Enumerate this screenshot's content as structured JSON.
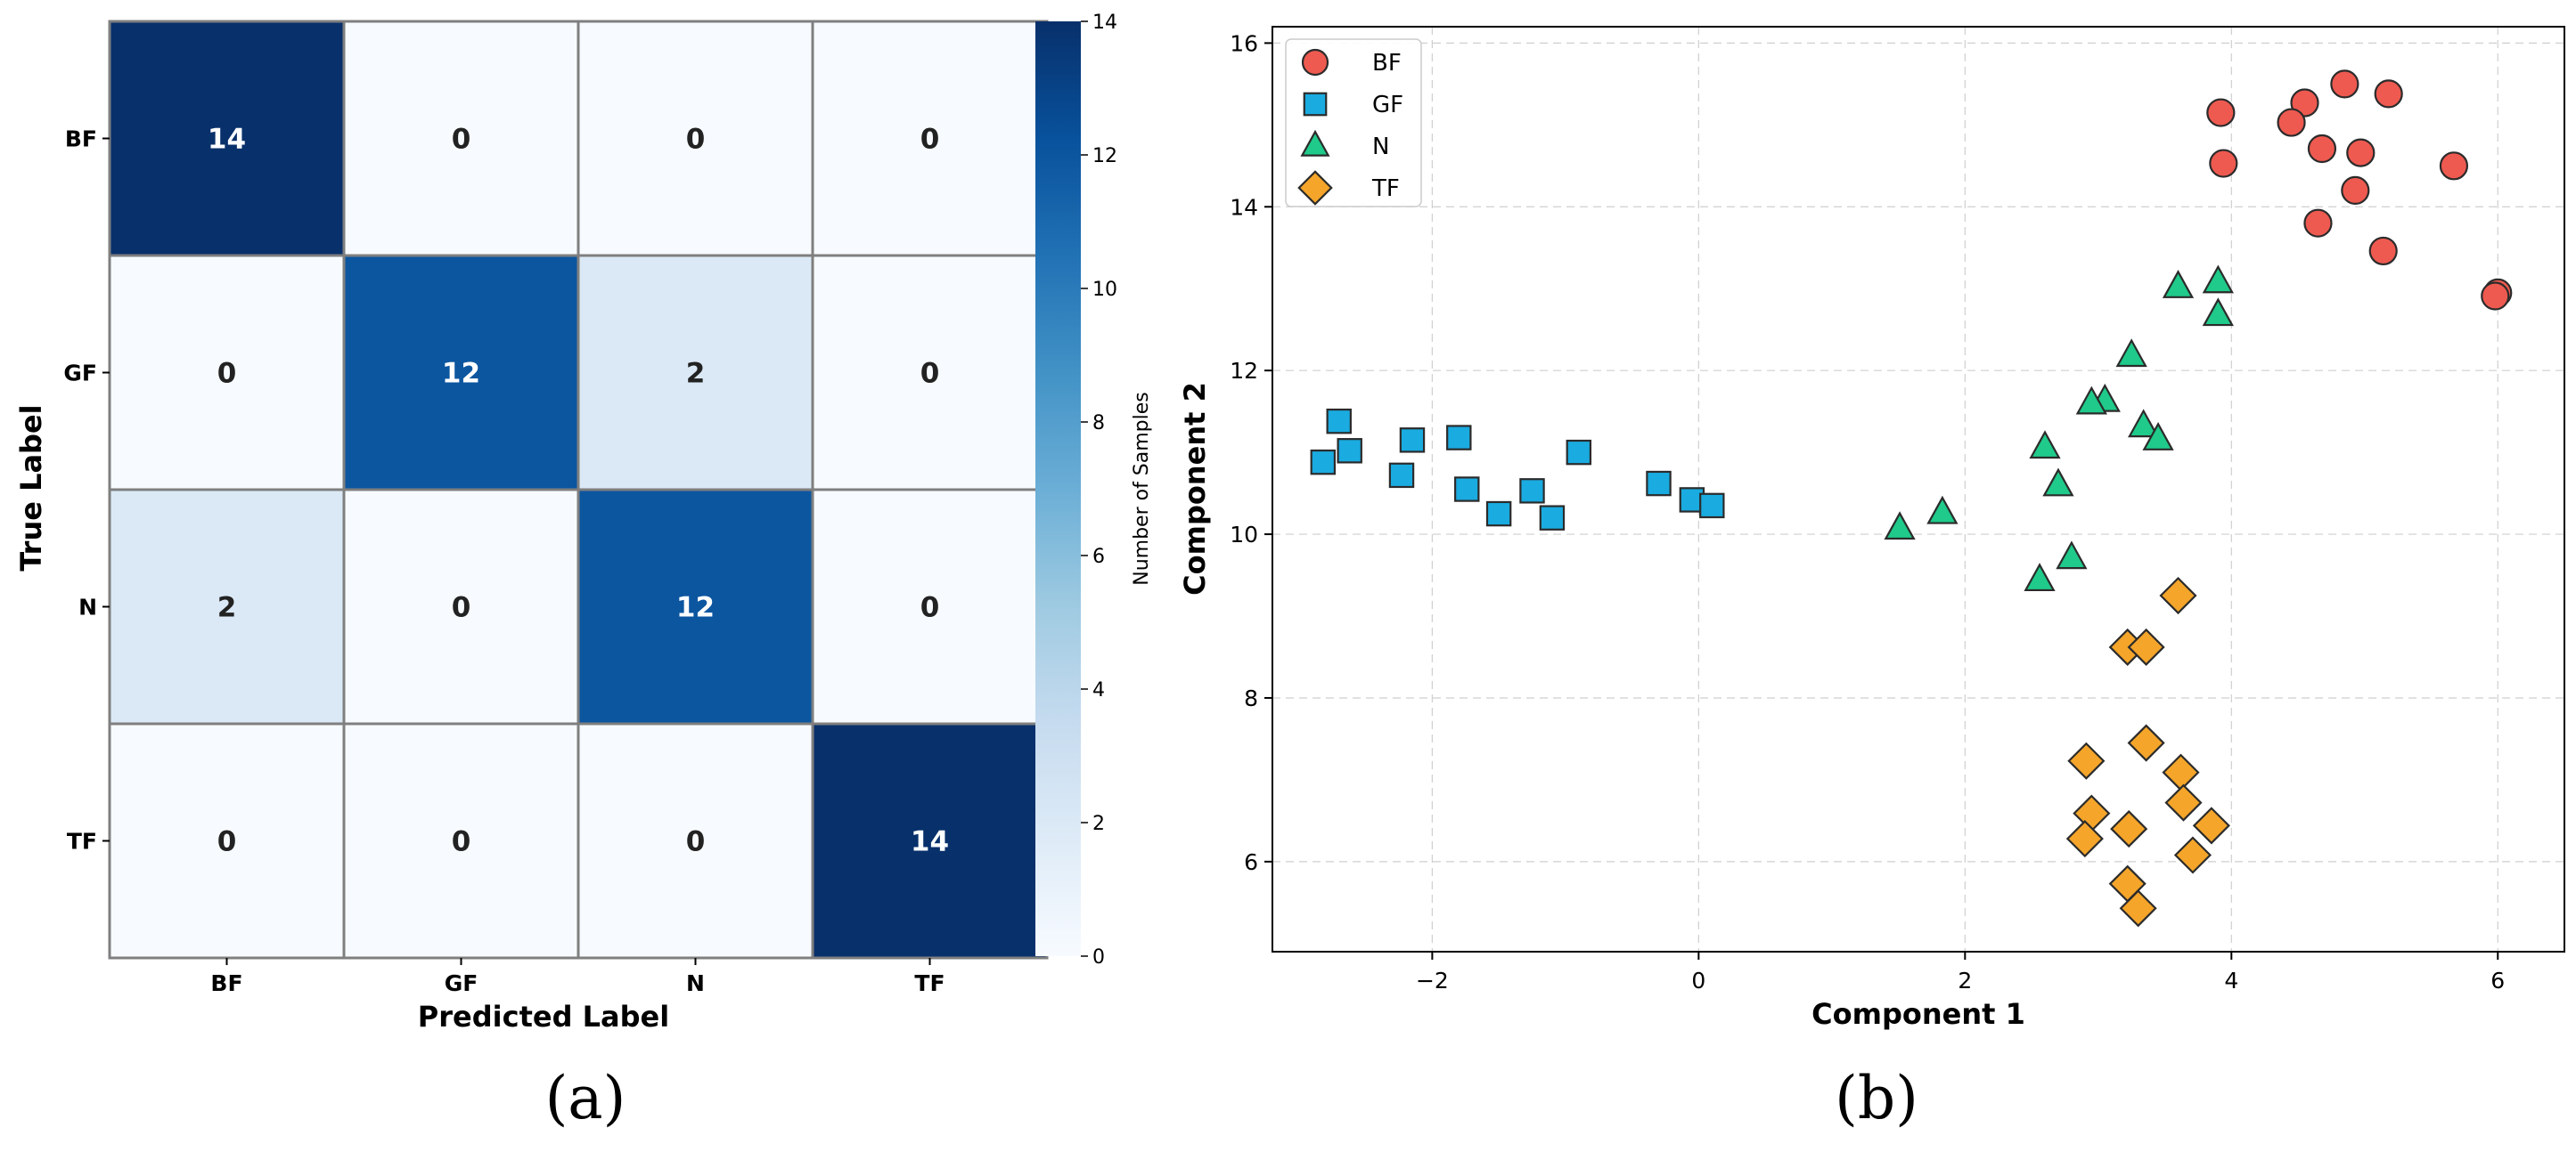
{
  "chart_data": [
    {
      "type": "heatmap",
      "panel_label": "(a)",
      "title": "",
      "xlabel": "Predicted Label",
      "ylabel": "True Label",
      "x_categories": [
        "BF",
        "GF",
        "N",
        "TF"
      ],
      "y_categories": [
        "BF",
        "GF",
        "N",
        "TF"
      ],
      "matrix": [
        [
          14,
          0,
          0,
          0
        ],
        [
          0,
          12,
          2,
          0
        ],
        [
          2,
          0,
          12,
          0
        ],
        [
          0,
          0,
          0,
          14
        ]
      ],
      "colormap": "Blues",
      "colorbar": {
        "label": "Number of Samples",
        "range": [
          0,
          14
        ],
        "ticks": [
          0,
          2,
          4,
          6,
          8,
          10,
          12,
          14
        ]
      }
    },
    {
      "type": "scatter",
      "panel_label": "(b)",
      "title": "",
      "xlabel": "Component 1",
      "ylabel": "Component 2",
      "xlim": [
        -3.2,
        6.5
      ],
      "ylim": [
        4.9,
        16.2
      ],
      "xticks": [
        -2,
        0,
        2,
        4,
        6
      ],
      "yticks": [
        6,
        8,
        10,
        12,
        14,
        16
      ],
      "grid": true,
      "legend_position": "top-left",
      "series": [
        {
          "name": "BF",
          "marker": "circle",
          "color": "#EE5A50",
          "points": [
            [
              3.92,
              15.15
            ],
            [
              4.55,
              15.27
            ],
            [
              4.85,
              15.5
            ],
            [
              5.18,
              15.38
            ],
            [
              4.45,
              15.03
            ],
            [
              4.68,
              14.71
            ],
            [
              4.97,
              14.66
            ],
            [
              3.94,
              14.53
            ],
            [
              5.67,
              14.5
            ],
            [
              4.93,
              14.2
            ],
            [
              4.65,
              13.8
            ],
            [
              5.14,
              13.46
            ],
            [
              6.0,
              12.95
            ],
            [
              5.98,
              12.91
            ]
          ]
        },
        {
          "name": "GF",
          "marker": "square",
          "color": "#1AABE0",
          "points": [
            [
              -2.7,
              11.38
            ],
            [
              -2.62,
              11.02
            ],
            [
              -2.82,
              10.88
            ],
            [
              -2.15,
              11.15
            ],
            [
              -1.8,
              11.18
            ],
            [
              -0.9,
              11.0
            ],
            [
              -2.23,
              10.72
            ],
            [
              -1.74,
              10.55
            ],
            [
              -1.25,
              10.53
            ],
            [
              -0.3,
              10.62
            ],
            [
              -1.5,
              10.25
            ],
            [
              -1.1,
              10.2
            ],
            [
              -0.05,
              10.42
            ],
            [
              0.1,
              10.35
            ]
          ]
        },
        {
          "name": "N",
          "marker": "triangle",
          "color": "#1FCA8A",
          "points": [
            [
              3.6,
              13.02
            ],
            [
              3.9,
              13.08
            ],
            [
              3.9,
              12.68
            ],
            [
              3.25,
              12.18
            ],
            [
              3.05,
              11.63
            ],
            [
              2.95,
              11.6
            ],
            [
              3.34,
              11.32
            ],
            [
              3.45,
              11.16
            ],
            [
              2.6,
              11.06
            ],
            [
              2.7,
              10.6
            ],
            [
              1.83,
              10.26
            ],
            [
              1.51,
              10.07
            ],
            [
              2.8,
              9.71
            ],
            [
              2.56,
              9.44
            ]
          ]
        },
        {
          "name": "TF",
          "marker": "diamond",
          "color": "#F4A52A",
          "points": [
            [
              3.6,
              9.25
            ],
            [
              3.22,
              8.62
            ],
            [
              3.36,
              8.62
            ],
            [
              3.36,
              7.45
            ],
            [
              2.91,
              7.23
            ],
            [
              3.62,
              7.09
            ],
            [
              3.64,
              6.72
            ],
            [
              2.95,
              6.59
            ],
            [
              3.85,
              6.44
            ],
            [
              3.23,
              6.4
            ],
            [
              2.9,
              6.28
            ],
            [
              3.71,
              6.08
            ],
            [
              3.22,
              5.73
            ],
            [
              3.3,
              5.43
            ]
          ]
        }
      ]
    }
  ]
}
